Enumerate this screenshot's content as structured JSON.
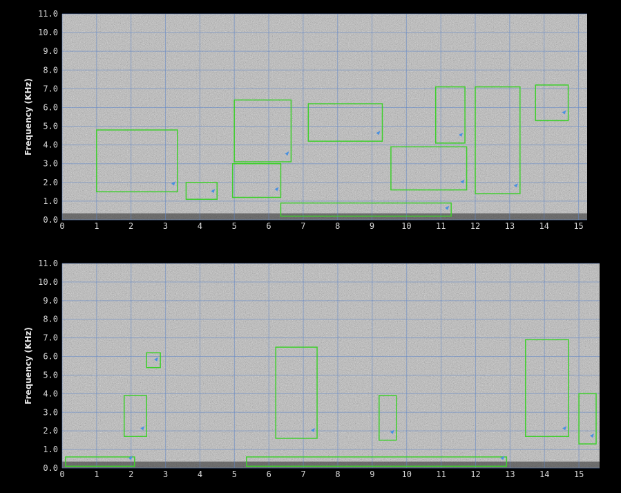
{
  "chart_data": [
    {
      "type": "spectrogram",
      "ylabel": "Frequency (KHz)",
      "xlabel": "",
      "xlim": [
        0,
        15.25
      ],
      "ylim": [
        0,
        11
      ],
      "xticks": [
        "0",
        "1",
        "2",
        "3",
        "4",
        "5",
        "6",
        "7",
        "8",
        "9",
        "10",
        "11",
        "12",
        "13",
        "14",
        "15"
      ],
      "yticks": [
        "0.0",
        "1.0",
        "2.0",
        "3.0",
        "4.0",
        "5.0",
        "6.0",
        "7.0",
        "8.0",
        "9.0",
        "10.0",
        "11.0"
      ],
      "grid": true,
      "colors": {
        "background": "#8c8c8c",
        "grid": "#5f86c8",
        "detection": "#3ecf2c",
        "marker": "#4a90e0"
      },
      "detections": [
        {
          "t0": 1.0,
          "t1": 3.35,
          "f0": 1.5,
          "f1": 4.8
        },
        {
          "t0": 3.6,
          "t1": 4.5,
          "f0": 1.1,
          "f1": 2.0
        },
        {
          "t0": 4.95,
          "t1": 6.35,
          "f0": 1.2,
          "f1": 3.0
        },
        {
          "t0": 5.0,
          "t1": 6.65,
          "f0": 3.1,
          "f1": 6.4
        },
        {
          "t0": 6.35,
          "t1": 11.3,
          "f0": 0.2,
          "f1": 0.9
        },
        {
          "t0": 7.15,
          "t1": 9.3,
          "f0": 4.2,
          "f1": 6.2
        },
        {
          "t0": 9.55,
          "t1": 11.75,
          "f0": 1.6,
          "f1": 3.9
        },
        {
          "t0": 10.85,
          "t1": 11.7,
          "f0": 4.1,
          "f1": 7.1
        },
        {
          "t0": 12.0,
          "t1": 13.3,
          "f0": 1.4,
          "f1": 7.1
        },
        {
          "t0": 13.75,
          "t1": 14.7,
          "f0": 5.3,
          "f1": 7.2
        }
      ]
    },
    {
      "type": "spectrogram",
      "ylabel": "Frequency (KHz)",
      "xlabel": "",
      "xlim": [
        0,
        15.6
      ],
      "ylim": [
        0,
        11
      ],
      "xticks": [
        "0",
        "1",
        "2",
        "3",
        "4",
        "5",
        "6",
        "7",
        "8",
        "9",
        "10",
        "11",
        "12",
        "13",
        "14",
        "15"
      ],
      "yticks": [
        "0.0",
        "1.0",
        "2.0",
        "3.0",
        "4.0",
        "5.0",
        "6.0",
        "7.0",
        "8.0",
        "9.0",
        "10.0",
        "11.0"
      ],
      "grid": true,
      "colors": {
        "background": "#8c8c8c",
        "grid": "#5f86c8",
        "detection": "#3ecf2c",
        "marker": "#4a90e0"
      },
      "detections": [
        {
          "t0": 0.1,
          "t1": 2.1,
          "f0": 0.1,
          "f1": 0.6
        },
        {
          "t0": 1.8,
          "t1": 2.45,
          "f0": 1.7,
          "f1": 3.9
        },
        {
          "t0": 2.45,
          "t1": 2.85,
          "f0": 5.4,
          "f1": 6.2
        },
        {
          "t0": 5.35,
          "t1": 12.9,
          "f0": 0.1,
          "f1": 0.6
        },
        {
          "t0": 6.2,
          "t1": 7.4,
          "f0": 1.6,
          "f1": 6.5
        },
        {
          "t0": 9.2,
          "t1": 9.7,
          "f0": 1.5,
          "f1": 3.9
        },
        {
          "t0": 13.45,
          "t1": 14.7,
          "f0": 1.7,
          "f1": 6.9
        },
        {
          "t0": 15.0,
          "t1": 15.5,
          "f0": 1.3,
          "f1": 4.0
        }
      ]
    }
  ]
}
